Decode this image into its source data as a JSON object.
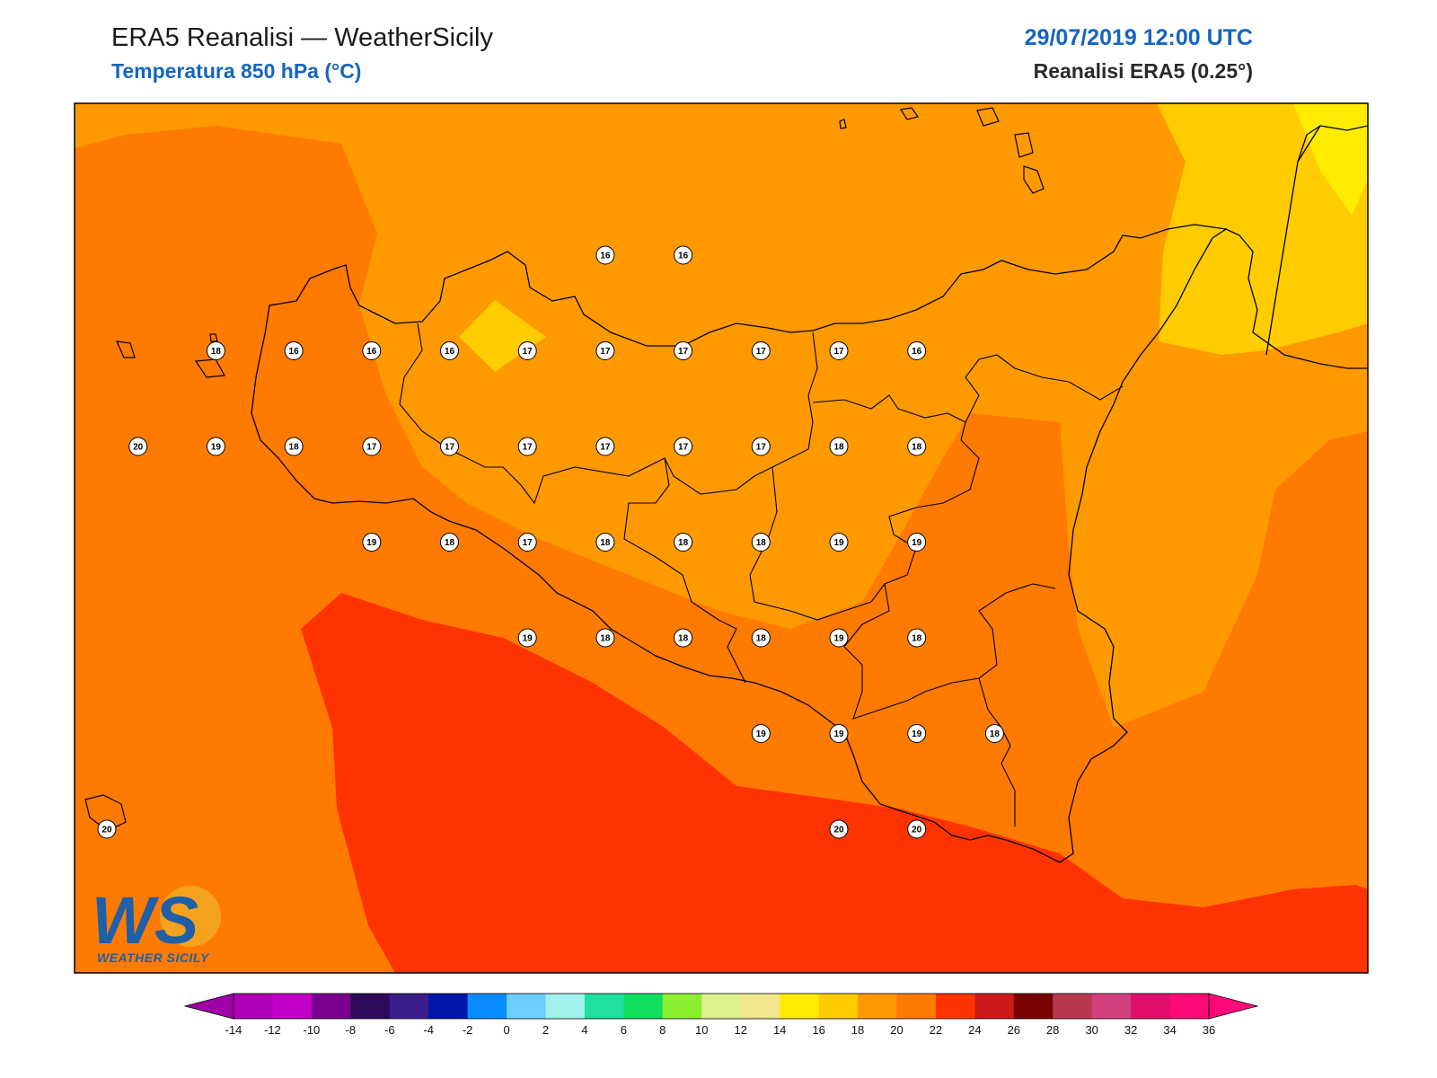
{
  "header": {
    "title": "ERA5 Reanalisi — WeatherSicily",
    "subtitle": "Temperatura 850 hPa (°C)",
    "datetime": "29/07/2019 12:00 UTC",
    "model": "Reanalisi ERA5 (0.25°)"
  },
  "logo": {
    "monogram": "WS",
    "caption": "WEATHER SICILY"
  },
  "colorbar": {
    "ticks": [
      "-14",
      "-12",
      "-10",
      "-8",
      "-6",
      "-4",
      "-2",
      "0",
      "2",
      "4",
      "6",
      "8",
      "10",
      "12",
      "14",
      "16",
      "18",
      "20",
      "22",
      "24",
      "26",
      "28",
      "30",
      "32",
      "34",
      "36"
    ],
    "colors": [
      "#b000b8",
      "#c300c8",
      "#7c0090",
      "#2e0a5c",
      "#3b1e8a",
      "#0018a8",
      "#0a8cff",
      "#6ccfff",
      "#a0f2ea",
      "#1fe0a0",
      "#10e060",
      "#8cf032",
      "#dcf08c",
      "#f0e68c",
      "#ffec00",
      "#ffcc00",
      "#ff9900",
      "#ff7a00",
      "#ff3300",
      "#cc1a1a",
      "#7a0000",
      "#b83850",
      "#d24080",
      "#e0106a",
      "#ff0a78"
    ]
  },
  "stations": [
    {
      "v": "16",
      "lon": 15.04,
      "lat": 38.32
    },
    {
      "v": "16",
      "lon": 15.54,
      "lat": 38.32
    },
    {
      "v": "18",
      "lon": 12.54,
      "lat": 37.71
    },
    {
      "v": "16",
      "lon": 13.04,
      "lat": 37.71
    },
    {
      "v": "16",
      "lon": 13.54,
      "lat": 37.71
    },
    {
      "v": "16",
      "lon": 14.04,
      "lat": 37.71
    },
    {
      "v": "17",
      "lon": 14.54,
      "lat": 37.71
    },
    {
      "v": "17",
      "lon": 15.04,
      "lat": 37.71
    },
    {
      "v": "17",
      "lon": 15.54,
      "lat": 37.71
    },
    {
      "v": "17",
      "lon": 16.04,
      "lat": 37.71
    },
    {
      "v": "17",
      "lon": 16.54,
      "lat": 37.71
    },
    {
      "v": "16",
      "lon": 17.04,
      "lat": 37.71
    },
    {
      "v": "20",
      "lon": 12.04,
      "lat": 37.1
    },
    {
      "v": "19",
      "lon": 12.54,
      "lat": 37.1
    },
    {
      "v": "18",
      "lon": 13.04,
      "lat": 37.1
    },
    {
      "v": "17",
      "lon": 13.54,
      "lat": 37.1
    },
    {
      "v": "17",
      "lon": 14.04,
      "lat": 37.1
    },
    {
      "v": "17",
      "lon": 14.54,
      "lat": 37.1
    },
    {
      "v": "17",
      "lon": 15.04,
      "lat": 37.1
    },
    {
      "v": "17",
      "lon": 15.54,
      "lat": 37.1
    },
    {
      "v": "17",
      "lon": 16.04,
      "lat": 37.1
    },
    {
      "v": "18",
      "lon": 16.54,
      "lat": 37.1
    },
    {
      "v": "18",
      "lon": 17.04,
      "lat": 37.1
    },
    {
      "v": "19",
      "lon": 13.54,
      "lat": 36.49
    },
    {
      "v": "18",
      "lon": 14.04,
      "lat": 36.49
    },
    {
      "v": "17",
      "lon": 14.54,
      "lat": 36.49
    },
    {
      "v": "18",
      "lon": 15.04,
      "lat": 36.49
    },
    {
      "v": "18",
      "lon": 15.54,
      "lat": 36.49
    },
    {
      "v": "18",
      "lon": 16.04,
      "lat": 36.49
    },
    {
      "v": "19",
      "lon": 16.54,
      "lat": 36.49
    },
    {
      "v": "19",
      "lon": 17.04,
      "lat": 36.49
    },
    {
      "v": "19",
      "lon": 14.54,
      "lat": 35.88
    },
    {
      "v": "18",
      "lon": 15.04,
      "lat": 35.88
    },
    {
      "v": "18",
      "lon": 15.54,
      "lat": 35.88
    },
    {
      "v": "18",
      "lon": 16.04,
      "lat": 35.88
    },
    {
      "v": "19",
      "lon": 16.54,
      "lat": 35.88
    },
    {
      "v": "18",
      "lon": 17.04,
      "lat": 35.88
    },
    {
      "v": "19",
      "lon": 16.04,
      "lat": 35.27
    },
    {
      "v": "19",
      "lon": 16.54,
      "lat": 35.27
    },
    {
      "v": "19",
      "lon": 17.04,
      "lat": 35.27
    },
    {
      "v": "18",
      "lon": 17.54,
      "lat": 35.27
    },
    {
      "v": "20",
      "lon": 11.84,
      "lat": 34.66
    },
    {
      "v": "20",
      "lon": 16.54,
      "lat": 34.66
    },
    {
      "v": "20",
      "lon": 17.04,
      "lat": 34.66
    }
  ]
}
